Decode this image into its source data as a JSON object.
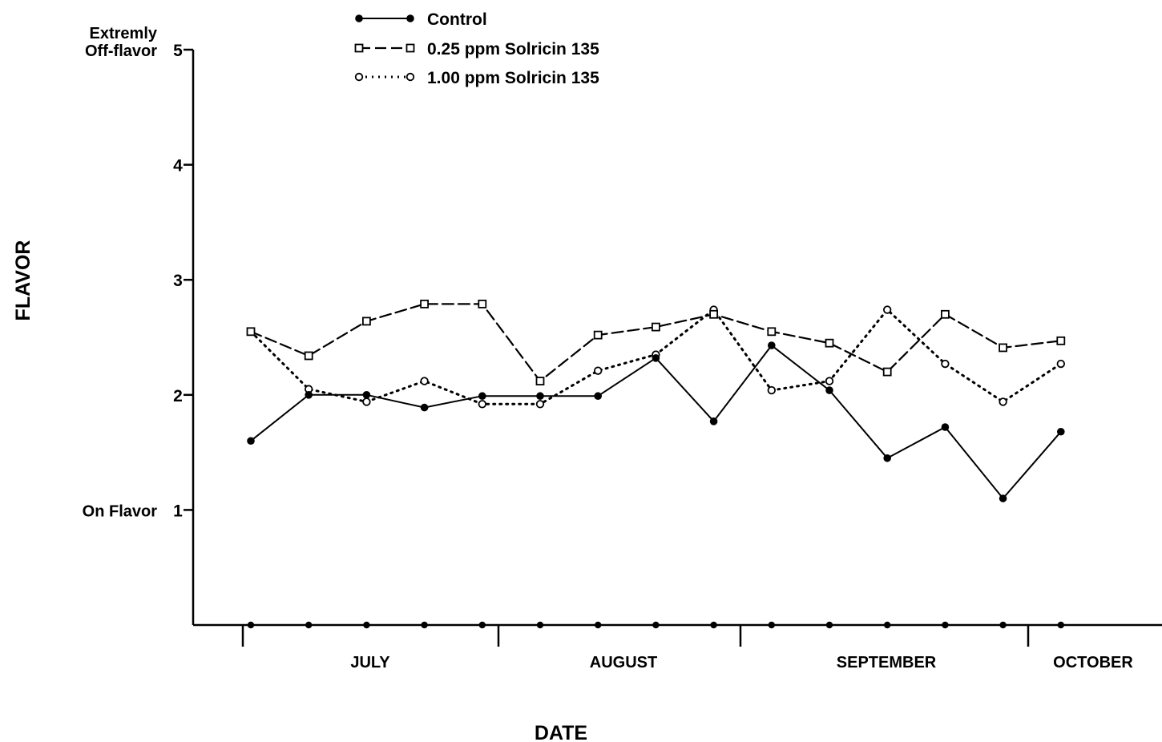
{
  "chart_data": {
    "type": "line",
    "xlabel": "DATE",
    "ylabel": "FLAVOR",
    "ylim": [
      0,
      5
    ],
    "yticks": [
      1,
      2,
      3,
      4,
      5
    ],
    "ytick_labels": [
      "1",
      "2",
      "3",
      "4",
      "5"
    ],
    "y_annotations": [
      {
        "y": 5,
        "lines": [
          "Extremly",
          "Off-flavor"
        ]
      },
      {
        "y": 1,
        "lines": [
          "On Flavor"
        ]
      }
    ],
    "months": [
      "JULY",
      "AUGUST",
      "SEPTEMBER",
      "OCTOBER"
    ],
    "sample_count": 15,
    "series": [
      {
        "name": "Control",
        "marker": "filled-circle",
        "line": "solid",
        "values": [
          1.6,
          2.0,
          2.0,
          1.89,
          1.99,
          1.99,
          1.99,
          2.32,
          1.77,
          2.43,
          2.04,
          1.45,
          1.72,
          1.1,
          1.68
        ]
      },
      {
        "name": "0.25 ppm Solricin 135",
        "marker": "open-square",
        "line": "dashed",
        "values": [
          2.55,
          2.34,
          2.64,
          2.79,
          2.79,
          2.12,
          2.52,
          2.59,
          2.7,
          2.55,
          2.45,
          2.2,
          2.7,
          2.41,
          2.47
        ]
      },
      {
        "name": "1.00 ppm Solricin 135",
        "marker": "open-circle",
        "line": "dotted",
        "values": [
          2.55,
          2.05,
          1.94,
          2.12,
          1.92,
          1.92,
          2.21,
          2.35,
          2.74,
          2.04,
          2.12,
          2.74,
          2.27,
          1.94,
          2.27
        ]
      }
    ],
    "legend_position": "top-left",
    "grid": false
  }
}
